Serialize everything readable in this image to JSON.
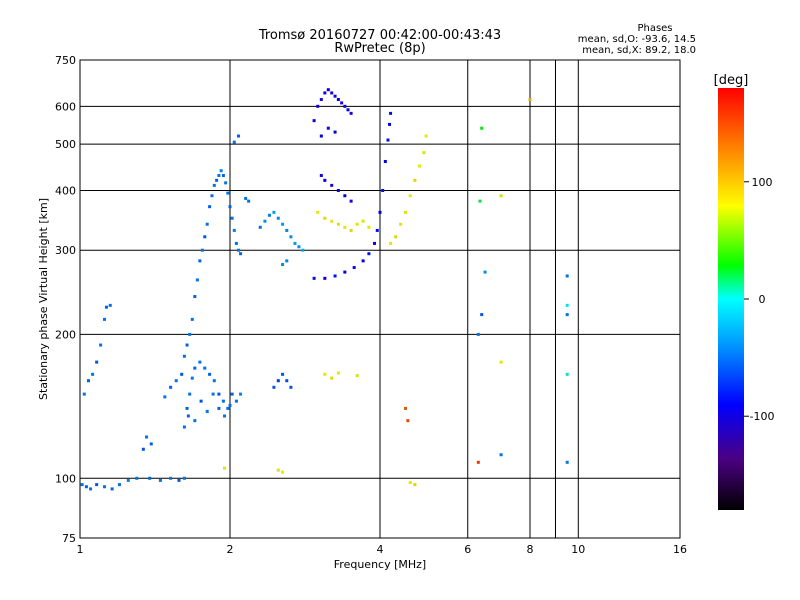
{
  "chart_data": {
    "type": "scatter",
    "title": "Tromsø 20160727 00:42:00-00:43:43",
    "subtitle": "RwPretec (8p)",
    "xlabel": "Frequency [MHz]",
    "ylabel": "Stationary phase Virtual Height [km]",
    "x_scale": "log",
    "y_scale": "log",
    "xlim": [
      1,
      16
    ],
    "ylim": [
      75,
      750
    ],
    "x_ticks": [
      1,
      2,
      4,
      6,
      8,
      10,
      16
    ],
    "x_tick_labels": [
      "1",
      "2",
      "4",
      "6",
      "8",
      "10",
      "16"
    ],
    "y_ticks": [
      75,
      100,
      200,
      300,
      400,
      500,
      600,
      750
    ],
    "y_tick_labels": [
      "75",
      "100",
      "200",
      "300",
      "400",
      "500",
      "600",
      "750"
    ],
    "grid": true,
    "stats": {
      "heading": "Phases",
      "line_o": "mean, sd,O: -93.6, 14.5",
      "line_x": "mean, sd,X:  89.2, 18.0"
    },
    "colorbar": {
      "label": "[deg]",
      "range": [
        -180,
        180
      ],
      "ticks": [
        100,
        0,
        -100
      ],
      "tick_labels": [
        "100",
        "0",
        "-100"
      ]
    },
    "series": [
      {
        "points": [
          [
            1.01,
            97,
            -100
          ],
          [
            1.03,
            96,
            -105
          ],
          [
            1.05,
            95,
            -100
          ],
          [
            1.08,
            97,
            -110
          ],
          [
            1.12,
            96,
            -100
          ],
          [
            1.16,
            95,
            -105
          ],
          [
            1.2,
            97,
            -100
          ],
          [
            1.25,
            99,
            -95
          ],
          [
            1.3,
            100,
            -100
          ],
          [
            1.38,
            100,
            -105
          ],
          [
            1.45,
            99,
            -100
          ],
          [
            1.52,
            100,
            -100
          ],
          [
            1.58,
            99,
            -110
          ],
          [
            1.62,
            100,
            -100
          ]
        ]
      },
      {
        "points": [
          [
            1.02,
            150,
            -100
          ],
          [
            1.04,
            160,
            -105
          ],
          [
            1.06,
            165,
            -100
          ],
          [
            1.08,
            175,
            -110
          ],
          [
            1.1,
            190,
            -100
          ],
          [
            1.12,
            215,
            -100
          ],
          [
            1.13,
            228,
            -105
          ],
          [
            1.15,
            230,
            -100
          ]
        ]
      },
      {
        "points": [
          [
            1.34,
            115,
            -110
          ],
          [
            1.36,
            122,
            -100
          ],
          [
            1.39,
            118,
            -105
          ]
        ]
      },
      {
        "points": [
          [
            1.48,
            148,
            -100
          ],
          [
            1.52,
            155,
            -105
          ],
          [
            1.56,
            160,
            -100
          ],
          [
            1.6,
            165,
            -110
          ],
          [
            1.62,
            180,
            -100
          ],
          [
            1.64,
            190,
            -105
          ],
          [
            1.66,
            200,
            -100
          ],
          [
            1.68,
            215,
            -100
          ],
          [
            1.7,
            240,
            -105
          ],
          [
            1.72,
            260,
            -100
          ],
          [
            1.74,
            285,
            -105
          ],
          [
            1.76,
            300,
            -100
          ],
          [
            1.78,
            320,
            -110
          ],
          [
            1.8,
            340,
            -100
          ],
          [
            1.82,
            370,
            -105
          ],
          [
            1.84,
            390,
            -100
          ],
          [
            1.86,
            410,
            -100
          ],
          [
            1.88,
            420,
            -105
          ],
          [
            1.9,
            430,
            -100
          ],
          [
            1.92,
            440,
            -95
          ],
          [
            1.94,
            430,
            -105
          ],
          [
            1.96,
            415,
            -100
          ],
          [
            1.98,
            395,
            -100
          ],
          [
            2.0,
            370,
            -105
          ],
          [
            2.02,
            350,
            -100
          ],
          [
            2.04,
            330,
            -95
          ],
          [
            2.06,
            310,
            -100
          ],
          [
            2.08,
            300,
            -100
          ],
          [
            2.1,
            295,
            -105
          ]
        ]
      },
      {
        "points": [
          [
            1.64,
            140,
            -105
          ],
          [
            1.66,
            150,
            -100
          ],
          [
            1.68,
            162,
            -100
          ],
          [
            1.7,
            170,
            -105
          ],
          [
            1.74,
            175,
            -100
          ],
          [
            1.78,
            170,
            -100
          ],
          [
            1.82,
            165,
            -105
          ],
          [
            1.86,
            160,
            -100
          ],
          [
            1.9,
            150,
            -110
          ],
          [
            1.94,
            145,
            -100
          ],
          [
            1.98,
            140,
            -100
          ],
          [
            2.02,
            150,
            -105
          ],
          [
            2.06,
            145,
            -100
          ],
          [
            2.1,
            150,
            -95
          ]
        ]
      },
      {
        "points": [
          [
            1.62,
            128,
            -100
          ],
          [
            1.65,
            135,
            -105
          ],
          [
            1.7,
            132,
            -100
          ],
          [
            1.75,
            145,
            -110
          ],
          [
            1.8,
            138,
            -100
          ],
          [
            1.85,
            150,
            -100
          ],
          [
            1.9,
            140,
            -105
          ],
          [
            1.95,
            135,
            -100
          ],
          [
            2.0,
            142,
            -100
          ]
        ]
      },
      {
        "points": [
          [
            2.04,
            505,
            -100
          ],
          [
            2.08,
            520,
            -105
          ],
          [
            2.15,
            385,
            -100
          ],
          [
            2.18,
            380,
            -100
          ]
        ]
      },
      {
        "points": [
          [
            2.3,
            335,
            -100
          ],
          [
            2.35,
            345,
            -90
          ],
          [
            2.4,
            355,
            -95
          ],
          [
            2.45,
            360,
            -85
          ],
          [
            2.5,
            350,
            -90
          ],
          [
            2.55,
            340,
            -85
          ],
          [
            2.6,
            330,
            -95
          ],
          [
            2.65,
            320,
            -90
          ],
          [
            2.7,
            310,
            -85
          ],
          [
            2.75,
            305,
            -90
          ],
          [
            2.8,
            300,
            -80
          ],
          [
            2.6,
            285,
            -95
          ],
          [
            2.55,
            280,
            -90
          ]
        ]
      },
      {
        "points": [
          [
            2.45,
            155,
            -110
          ],
          [
            2.5,
            160,
            -120
          ],
          [
            2.55,
            165,
            -110
          ],
          [
            2.6,
            160,
            -115
          ],
          [
            2.65,
            155,
            -110
          ]
        ]
      },
      {
        "points": [
          [
            2.95,
            560,
            -140
          ],
          [
            3.0,
            600,
            -145
          ],
          [
            3.05,
            620,
            -150
          ],
          [
            3.1,
            640,
            -145
          ],
          [
            3.15,
            650,
            -140
          ],
          [
            3.2,
            640,
            -150
          ],
          [
            3.25,
            630,
            -145
          ],
          [
            3.3,
            620,
            -140
          ],
          [
            3.35,
            610,
            -150
          ],
          [
            3.4,
            600,
            -145
          ],
          [
            3.45,
            590,
            -140
          ],
          [
            3.5,
            580,
            -150
          ],
          [
            3.05,
            520,
            -140
          ],
          [
            3.15,
            540,
            -145
          ],
          [
            3.25,
            530,
            -140
          ]
        ]
      },
      {
        "points": [
          [
            3.05,
            430,
            -145
          ],
          [
            3.1,
            420,
            -140
          ],
          [
            3.2,
            410,
            -150
          ],
          [
            3.3,
            400,
            -145
          ],
          [
            3.4,
            390,
            -140
          ],
          [
            3.5,
            380,
            -150
          ]
        ]
      },
      {
        "points": [
          [
            2.95,
            262,
            -135
          ],
          [
            3.1,
            262,
            -140
          ],
          [
            3.25,
            265,
            -135
          ],
          [
            3.4,
            270,
            -140
          ],
          [
            3.55,
            276,
            -135
          ],
          [
            3.7,
            285,
            -140
          ],
          [
            3.8,
            295,
            -135
          ],
          [
            3.9,
            310,
            -140
          ],
          [
            3.95,
            330,
            -135
          ],
          [
            4.0,
            360,
            -140
          ],
          [
            4.05,
            400,
            -135
          ],
          [
            4.1,
            460,
            -140
          ],
          [
            4.15,
            510,
            -135
          ],
          [
            4.18,
            550,
            -140
          ],
          [
            4.2,
            580,
            -135
          ]
        ]
      },
      {
        "points": [
          [
            3.0,
            360,
            100
          ],
          [
            3.1,
            350,
            105
          ],
          [
            3.2,
            345,
            100
          ],
          [
            3.3,
            340,
            95
          ],
          [
            3.4,
            335,
            100
          ],
          [
            3.5,
            330,
            105
          ],
          [
            3.6,
            340,
            100
          ],
          [
            3.7,
            345,
            95
          ],
          [
            3.8,
            335,
            100
          ]
        ]
      },
      {
        "points": [
          [
            4.2,
            310,
            100
          ],
          [
            4.3,
            320,
            105
          ],
          [
            4.4,
            340,
            100
          ],
          [
            4.5,
            360,
            95
          ],
          [
            4.6,
            390,
            100
          ],
          [
            4.7,
            420,
            105
          ],
          [
            4.8,
            450,
            100
          ],
          [
            4.9,
            480,
            95
          ],
          [
            4.95,
            520,
            100
          ]
        ]
      },
      {
        "points": [
          [
            3.1,
            165,
            100
          ],
          [
            3.2,
            162,
            105
          ],
          [
            3.3,
            166,
            100
          ],
          [
            3.6,
            164,
            95
          ]
        ]
      },
      {
        "points": [
          [
            2.5,
            104,
            95
          ],
          [
            2.55,
            103,
            100
          ],
          [
            1.95,
            105,
            100
          ],
          [
            4.6,
            98,
            100
          ],
          [
            4.7,
            97,
            105
          ]
        ]
      },
      {
        "points": [
          [
            4.5,
            140,
            150
          ],
          [
            4.55,
            132,
            155
          ],
          [
            6.3,
            108,
            160
          ],
          [
            6.5,
            270,
            -90
          ],
          [
            6.4,
            220,
            -110
          ],
          [
            6.3,
            200,
            -100
          ],
          [
            6.35,
            380,
            0
          ],
          [
            6.4,
            540,
            20
          ],
          [
            7.0,
            390,
            90
          ],
          [
            7.0,
            175,
            100
          ],
          [
            7.0,
            112,
            -100
          ],
          [
            8.0,
            620,
            120
          ],
          [
            9.5,
            265,
            -100
          ],
          [
            9.5,
            230,
            -60
          ],
          [
            9.5,
            220,
            -100
          ],
          [
            9.5,
            165,
            -50
          ],
          [
            9.5,
            108,
            -100
          ]
        ]
      }
    ]
  }
}
